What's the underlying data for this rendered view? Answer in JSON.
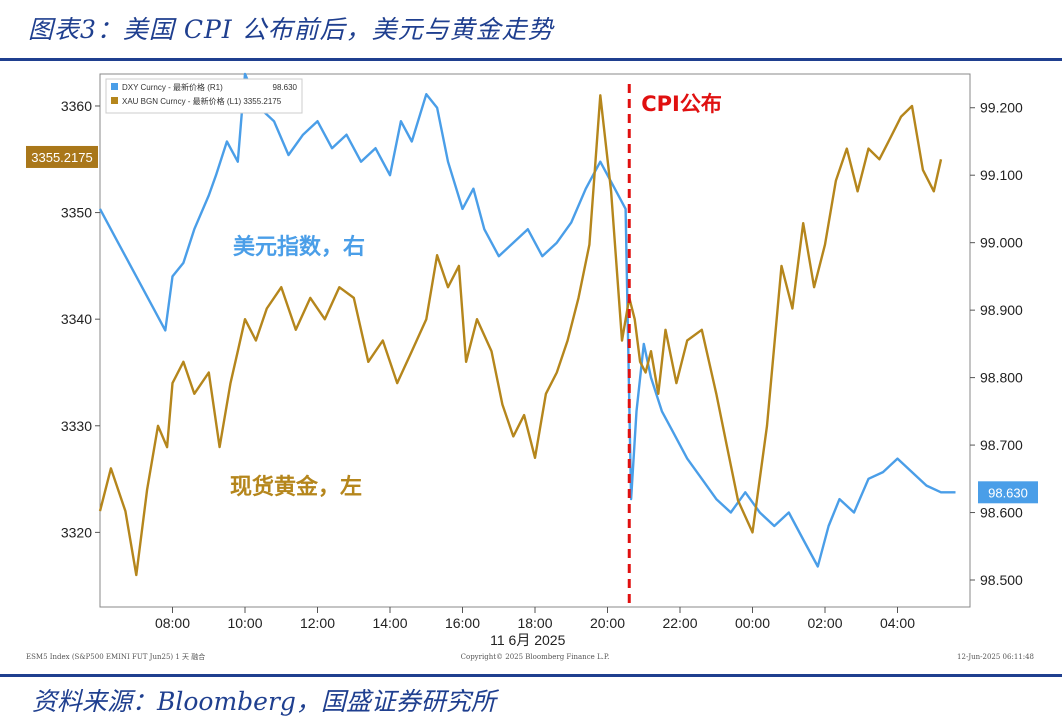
{
  "title": "图表3：美国 CPI 公布前后，美元与黄金走势",
  "source": "资料来源：Bloomberg，国盛证券研究所",
  "chart_data": {
    "type": "line",
    "legend": [
      {
        "label": "DXY Curncy - 最新价格 (R1)",
        "value": "98.630",
        "color": "#4a9ee8"
      },
      {
        "label": "XAU BGN Curncy - 最新价格 (L1) 3355.2175",
        "value": "",
        "color": "#b5861c"
      }
    ],
    "left_axis": {
      "ticks": [
        3320,
        3330,
        3340,
        3350,
        3360
      ],
      "tick_labels": [
        "3320",
        "3330",
        "3340",
        "3350",
        "3360"
      ],
      "ylim": [
        3313,
        3363
      ]
    },
    "right_axis": {
      "ticks": [
        98.5,
        98.6,
        98.7,
        98.8,
        98.9,
        99.0,
        99.1,
        99.2
      ],
      "tick_labels": [
        "98.500",
        "98.600",
        "98.700",
        "98.800",
        "98.900",
        "99.000",
        "99.100",
        "99.200"
      ],
      "ylim": [
        98.46,
        99.25
      ]
    },
    "x_ticks": [
      "08:00",
      "10:00",
      "12:00",
      "14:00",
      "16:00",
      "18:00",
      "20:00",
      "22:00",
      "00:00",
      "02:00",
      "04:00"
    ],
    "x_date_label": "11 6月 2025",
    "last_value_left": "3355.2175",
    "last_value_right": "98.630",
    "cpi_label": "CPI公布",
    "annotations": {
      "usd": "美元指数，右",
      "gold": "现货黄金，左"
    },
    "footer_left": "ESM5 Index (S&P500 EMINI FUT Jun25) 1 天 融合",
    "footer_center": "Copyright© 2025 Bloomberg Finance L.P.",
    "footer_right": "12-Jun-2025 06:11:48",
    "series": [
      {
        "name": "美元指数",
        "axis": "right",
        "color": "#4a9ee8",
        "x": [
          6.0,
          6.5,
          7.0,
          7.5,
          7.8,
          8.0,
          8.3,
          8.6,
          9.0,
          9.2,
          9.5,
          9.8,
          10.0,
          10.4,
          10.8,
          11.2,
          11.6,
          12.0,
          12.4,
          12.8,
          13.2,
          13.6,
          14.0,
          14.3,
          14.6,
          15.0,
          15.3,
          15.6,
          16.0,
          16.3,
          16.6,
          17.0,
          17.4,
          17.8,
          18.2,
          18.6,
          19.0,
          19.4,
          19.8,
          20.2,
          20.5,
          20.65,
          20.8,
          21.0,
          21.2,
          21.5,
          21.8,
          22.2,
          22.6,
          23.0,
          23.4,
          23.8,
          24.2,
          24.6,
          25.0,
          25.4,
          25.8,
          26.1,
          26.4,
          26.8,
          27.2,
          27.6,
          28.0,
          28.4,
          28.8,
          29.2,
          29.6
        ],
        "values": [
          99.05,
          99.0,
          98.95,
          98.9,
          98.87,
          98.95,
          98.97,
          99.02,
          99.07,
          99.1,
          99.15,
          99.12,
          99.25,
          99.2,
          99.18,
          99.13,
          99.16,
          99.18,
          99.14,
          99.16,
          99.12,
          99.14,
          99.1,
          99.18,
          99.15,
          99.22,
          99.2,
          99.12,
          99.05,
          99.08,
          99.02,
          98.98,
          99.0,
          99.02,
          98.98,
          99.0,
          99.03,
          99.08,
          99.12,
          99.08,
          99.05,
          98.62,
          98.75,
          98.85,
          98.8,
          98.75,
          98.72,
          98.68,
          98.65,
          98.62,
          98.6,
          98.63,
          98.6,
          98.58,
          98.6,
          98.56,
          98.52,
          98.58,
          98.62,
          98.6,
          98.65,
          98.66,
          98.68,
          98.66,
          98.64,
          98.63,
          98.63
        ]
      },
      {
        "name": "现货黄金",
        "axis": "left",
        "color": "#b5861c",
        "x": [
          6.0,
          6.3,
          6.7,
          7.0,
          7.3,
          7.6,
          7.85,
          8.0,
          8.3,
          8.6,
          9.0,
          9.3,
          9.6,
          9.8,
          10.0,
          10.3,
          10.6,
          11.0,
          11.4,
          11.8,
          12.2,
          12.6,
          13.0,
          13.4,
          13.8,
          14.2,
          14.6,
          15.0,
          15.3,
          15.6,
          15.9,
          16.1,
          16.4,
          16.8,
          17.1,
          17.4,
          17.7,
          18.0,
          18.3,
          18.6,
          18.9,
          19.2,
          19.5,
          19.8,
          20.1,
          20.4,
          20.6,
          20.75,
          20.9,
          21.05,
          21.2,
          21.4,
          21.6,
          21.9,
          22.2,
          22.6,
          23.0,
          23.3,
          23.6,
          24.0,
          24.4,
          24.8,
          25.1,
          25.4,
          25.7,
          26.0,
          26.3,
          26.6,
          26.9,
          27.2,
          27.5,
          27.8,
          28.1,
          28.4,
          28.7,
          29.0,
          29.2
        ],
        "values": [
          3322,
          3326,
          3322,
          3316,
          3324,
          3330,
          3328,
          3334,
          3336,
          3333,
          3335,
          3328,
          3334,
          3337,
          3340,
          3338,
          3341,
          3343,
          3339,
          3342,
          3340,
          3343,
          3342,
          3336,
          3338,
          3334,
          3337,
          3340,
          3346,
          3343,
          3345,
          3336,
          3340,
          3337,
          3332,
          3329,
          3331,
          3327,
          3333,
          3335,
          3338,
          3342,
          3347,
          3361,
          3352,
          3338,
          3342,
          3340,
          3336,
          3335,
          3337,
          3333,
          3339,
          3334,
          3338,
          3339,
          3333,
          3328,
          3323,
          3320,
          3330,
          3345,
          3341,
          3349,
          3343,
          3347,
          3353,
          3356,
          3352,
          3356,
          3355,
          3357,
          3359,
          3360,
          3354,
          3352,
          3355
        ]
      }
    ],
    "cpi_x": 20.6,
    "x_range": [
      6.0,
      30.0
    ]
  }
}
